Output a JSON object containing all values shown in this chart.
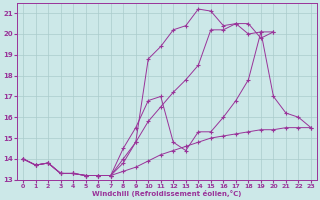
{
  "xlabel": "Windchill (Refroidissement éolien,°C)",
  "background_color": "#cce8e8",
  "grid_color": "#aacccc",
  "line_color": "#993399",
  "xlim": [
    -0.5,
    23.5
  ],
  "ylim": [
    13.0,
    21.5
  ],
  "yticks": [
    13,
    14,
    15,
    16,
    17,
    18,
    19,
    20,
    21
  ],
  "xticks": [
    0,
    1,
    2,
    3,
    4,
    5,
    6,
    7,
    8,
    9,
    10,
    11,
    12,
    13,
    14,
    15,
    16,
    17,
    18,
    19,
    20,
    21,
    22,
    23
  ],
  "line1_x": [
    0,
    1,
    2,
    3,
    4,
    5,
    6,
    7,
    8,
    9,
    10,
    11,
    12,
    13,
    14,
    15,
    16,
    17,
    18,
    19,
    20,
    21,
    22,
    23
  ],
  "line1_y": [
    14.0,
    13.7,
    13.8,
    13.3,
    13.3,
    13.2,
    13.2,
    13.2,
    13.4,
    13.6,
    13.9,
    14.2,
    14.4,
    14.6,
    14.8,
    15.0,
    15.1,
    15.2,
    15.3,
    15.4,
    15.4,
    15.5,
    15.5,
    15.5
  ],
  "line2_x": [
    0,
    1,
    2,
    3,
    4,
    5,
    6,
    7,
    8,
    9,
    10,
    11,
    12,
    13,
    14,
    15,
    16,
    17,
    18,
    19,
    20,
    21,
    22,
    23
  ],
  "line2_y": [
    14.0,
    13.7,
    13.8,
    13.3,
    13.3,
    13.2,
    13.2,
    13.2,
    14.5,
    15.5,
    16.8,
    17.0,
    14.8,
    14.4,
    15.3,
    15.3,
    16.0,
    16.8,
    17.8,
    20.1,
    17.0,
    16.2,
    16.0,
    15.5
  ],
  "line3_x": [
    0,
    1,
    2,
    3,
    4,
    5,
    6,
    7,
    8,
    9,
    10,
    11,
    12,
    13,
    14,
    15,
    16,
    17,
    18,
    19,
    20
  ],
  "line3_y": [
    14.0,
    13.7,
    13.8,
    13.3,
    13.3,
    13.2,
    13.2,
    13.2,
    14.0,
    14.8,
    15.8,
    16.5,
    17.2,
    17.8,
    18.5,
    20.2,
    20.2,
    20.5,
    20.0,
    20.1,
    20.1
  ],
  "line4_x": [
    0,
    1,
    2,
    3,
    4,
    5,
    6,
    7,
    8,
    9,
    10,
    11,
    12,
    13,
    14,
    15,
    16,
    17,
    18,
    19,
    20
  ],
  "line4_y": [
    14.0,
    13.7,
    13.8,
    13.3,
    13.3,
    13.2,
    13.2,
    13.2,
    13.8,
    14.8,
    18.8,
    19.4,
    20.2,
    20.4,
    21.2,
    21.1,
    20.4,
    20.5,
    20.5,
    19.8,
    20.1
  ]
}
